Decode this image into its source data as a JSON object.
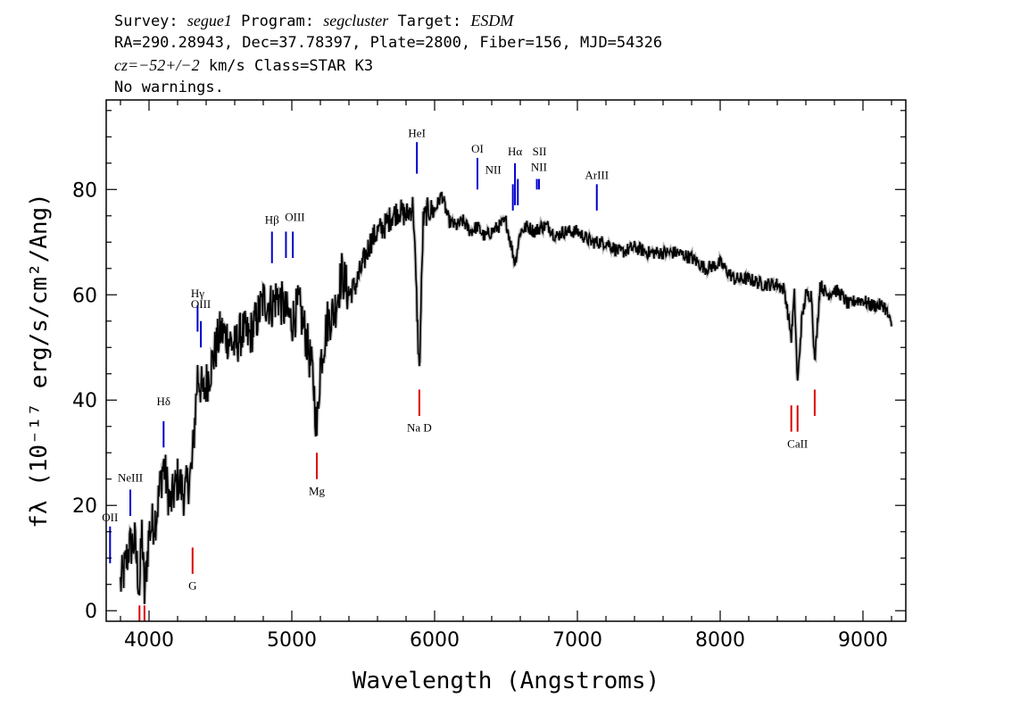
{
  "header": {
    "line1_prefix": "Survey: ",
    "survey": "segue1",
    "line1_mid": " Program: ",
    "program": "segcluster",
    "line1_mid2": " Target: ",
    "target": "ESDM",
    "line2": "RA=290.28943, Dec=37.78397, Plate=2800, Fiber=156, MJD=54326",
    "line3_cz": "cz=−52+/−2",
    "line3_rest": " km/s Class=STAR K3",
    "line4": "No warnings."
  },
  "chart_data": {
    "type": "line",
    "xlabel": "Wavelength (Angstroms)",
    "ylabel": "fλ (10⁻¹⁷ erg/s/cm²/Ang)",
    "xlim": [
      3700,
      9300
    ],
    "ylim": [
      -2,
      97
    ],
    "x_ticks": [
      4000,
      5000,
      6000,
      7000,
      8000,
      9000
    ],
    "y_ticks": [
      0,
      20,
      40,
      60,
      80
    ],
    "grid": false,
    "series": [
      {
        "color": "#000000",
        "x": [
          3800,
          3830,
          3860,
          3900,
          3933,
          3950,
          3968,
          4000,
          4050,
          4100,
          4150,
          4200,
          4250,
          4300,
          4340,
          4380,
          4450,
          4500,
          4550,
          4600,
          4650,
          4700,
          4750,
          4800,
          4861,
          4900,
          4950,
          5000,
          5050,
          5100,
          5150,
          5175,
          5200,
          5250,
          5300,
          5350,
          5400,
          5450,
          5500,
          5550,
          5600,
          5650,
          5700,
          5750,
          5800,
          5850,
          5893,
          5920,
          5950,
          6000,
          6050,
          6100,
          6150,
          6200,
          6250,
          6300,
          6350,
          6400,
          6450,
          6500,
          6563,
          6600,
          6650,
          6700,
          6750,
          6800,
          6850,
          6900,
          7000,
          7100,
          7200,
          7300,
          7400,
          7500,
          7600,
          7700,
          7800,
          7900,
          8000,
          8100,
          8200,
          8300,
          8400,
          8450,
          8498,
          8520,
          8542,
          8570,
          8600,
          8640,
          8662,
          8700,
          8750,
          8800,
          8850,
          8900,
          8950,
          9000,
          9050,
          9100,
          9150,
          9200
        ],
        "y": [
          5,
          8,
          12,
          13,
          4,
          15,
          3,
          15,
          18,
          28,
          20,
          25,
          22,
          27,
          45,
          41,
          48,
          53,
          52,
          50,
          53,
          52,
          55,
          59,
          58,
          60,
          57,
          55,
          58,
          52,
          44,
          34,
          47,
          55,
          57,
          64,
          60,
          62,
          66,
          70,
          72,
          73,
          75,
          76,
          75,
          77,
          45,
          74,
          76,
          76,
          79,
          74,
          73,
          74,
          72,
          73,
          71,
          72,
          73,
          74,
          66,
          72,
          73,
          72,
          73,
          73,
          71,
          72,
          72,
          70,
          70,
          68,
          69,
          68,
          68,
          68,
          67,
          65,
          66,
          63,
          63,
          62,
          62,
          61,
          52,
          60,
          43,
          55,
          60,
          60,
          47,
          62,
          60,
          61,
          60,
          58,
          59,
          59,
          58,
          58,
          58,
          54
        ]
      }
    ],
    "emission_lines": [
      {
        "label": "OII",
        "x": 3727,
        "ytop": 16,
        "ybot": 9,
        "label_y": 17
      },
      {
        "label": "NeIII",
        "x": 3869,
        "ytop": 23,
        "ybot": 18,
        "label_y": 24.5
      },
      {
        "label": "Hδ",
        "x": 4102,
        "ytop": 36,
        "ybot": 31,
        "label_y": 39
      },
      {
        "label": "Hγ",
        "x": 4340,
        "ytop": 58,
        "ybot": 53,
        "label_y": 59.5
      },
      {
        "label": "OIII",
        "x": 4363,
        "ytop": 55,
        "ybot": 50,
        "label_y": 57.5
      },
      {
        "label": "Hβ",
        "x": 4861,
        "ytop": 72,
        "ybot": 66,
        "label_y": 73.5
      },
      {
        "label": "OIII",
        "x": 4959,
        "ytop": 72,
        "ybot": 67,
        "label_y": 74,
        "dx": 10
      },
      {
        "label": "",
        "x": 5007,
        "ytop": 72,
        "ybot": 67
      },
      {
        "label": "HeI",
        "x": 5876,
        "ytop": 89,
        "ybot": 83,
        "label_y": 90
      },
      {
        "label": "OI",
        "x": 6300,
        "ytop": 86,
        "ybot": 80,
        "label_y": 87
      },
      {
        "label": "NII",
        "x": 6548,
        "ytop": 81,
        "ybot": 76,
        "label_y": 83,
        "dx": -22
      },
      {
        "label": "Hα",
        "x": 6563,
        "ytop": 85,
        "ybot": 77,
        "label_y": 86.5
      },
      {
        "label": "",
        "x": 6583,
        "ytop": 82,
        "ybot": 77
      },
      {
        "label": "SII",
        "x": 6716,
        "ytop": 82,
        "ybot": 80,
        "label_y": 86.5,
        "dx": 3
      },
      {
        "label": "NII",
        "x": 6731,
        "ytop": 82,
        "ybot": 80,
        "label_y": 83.5
      },
      {
        "label": "ArIII",
        "x": 7136,
        "ytop": 81,
        "ybot": 76,
        "label_y": 82
      }
    ],
    "absorption_lines": [
      {
        "label": "G",
        "x": 4305,
        "ytop": 12,
        "ybot": 7,
        "label_y": 4
      },
      {
        "label": "Mg",
        "x": 5175,
        "ytop": 30,
        "ybot": 25,
        "label_y": 22
      },
      {
        "label": "Na D",
        "x": 5893,
        "ytop": 42,
        "ybot": 37,
        "label_y": 34
      },
      {
        "label": "",
        "x": 3933,
        "ytop": 1,
        "ybot": -2
      },
      {
        "label": "",
        "x": 3968,
        "ytop": 1,
        "ybot": -2
      },
      {
        "label": "CaII",
        "x": 8542,
        "ytop": 39,
        "ybot": 34,
        "label_y": 31
      },
      {
        "label": "",
        "x": 8498,
        "ytop": 39,
        "ybot": 34
      },
      {
        "label": "",
        "x": 8662,
        "ytop": 42,
        "ybot": 37
      }
    ],
    "line_colors": {
      "emission": "#0000cc",
      "absorption": "#dd0000"
    }
  }
}
